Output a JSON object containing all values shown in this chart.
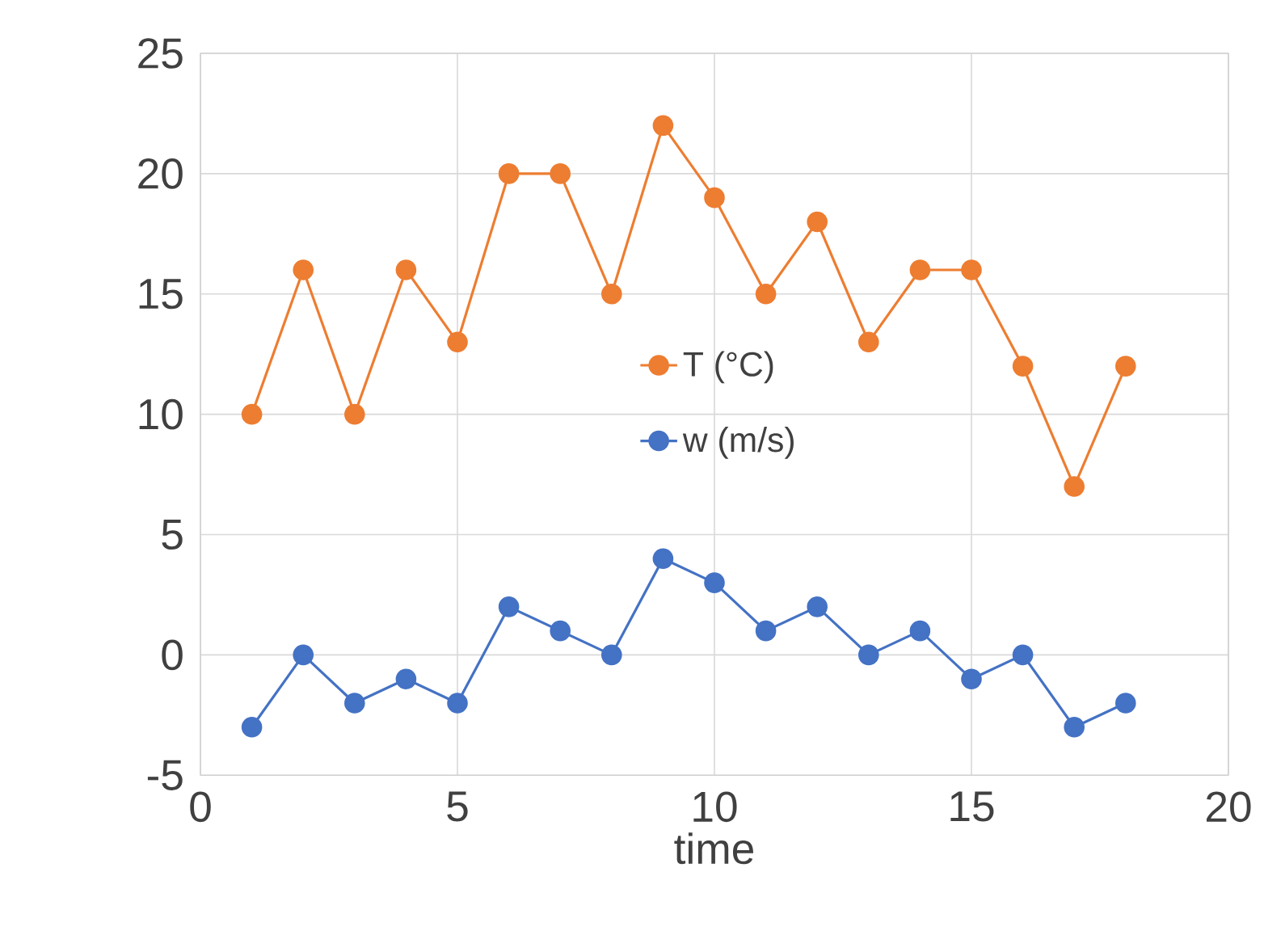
{
  "chart_data": {
    "type": "line",
    "xlabel": "time",
    "x": [
      1,
      2,
      3,
      4,
      5,
      6,
      7,
      8,
      9,
      10,
      11,
      12,
      13,
      14,
      15,
      16,
      17,
      18
    ],
    "series": [
      {
        "name": "T (°C)",
        "color": "#ed7d31",
        "values": [
          10,
          16,
          10,
          16,
          13,
          20,
          20,
          15,
          22,
          19,
          15,
          18,
          13,
          16,
          16,
          12,
          7,
          12
        ]
      },
      {
        "name": "w (m/s)",
        "color": "#4472c4",
        "values": [
          -3,
          0,
          -2,
          -1,
          -2,
          2,
          1,
          0,
          4,
          3,
          1,
          2,
          0,
          1,
          -1,
          0,
          -3,
          -2
        ]
      }
    ],
    "xlim": [
      0,
      20
    ],
    "xticks": [
      0,
      5,
      10,
      15,
      20
    ],
    "ylim": [
      -5,
      25
    ],
    "yticks": [
      -5,
      0,
      5,
      10,
      15,
      20,
      25
    ],
    "grid": true,
    "legend": "center",
    "marker": "circle",
    "line_style": "solid"
  }
}
